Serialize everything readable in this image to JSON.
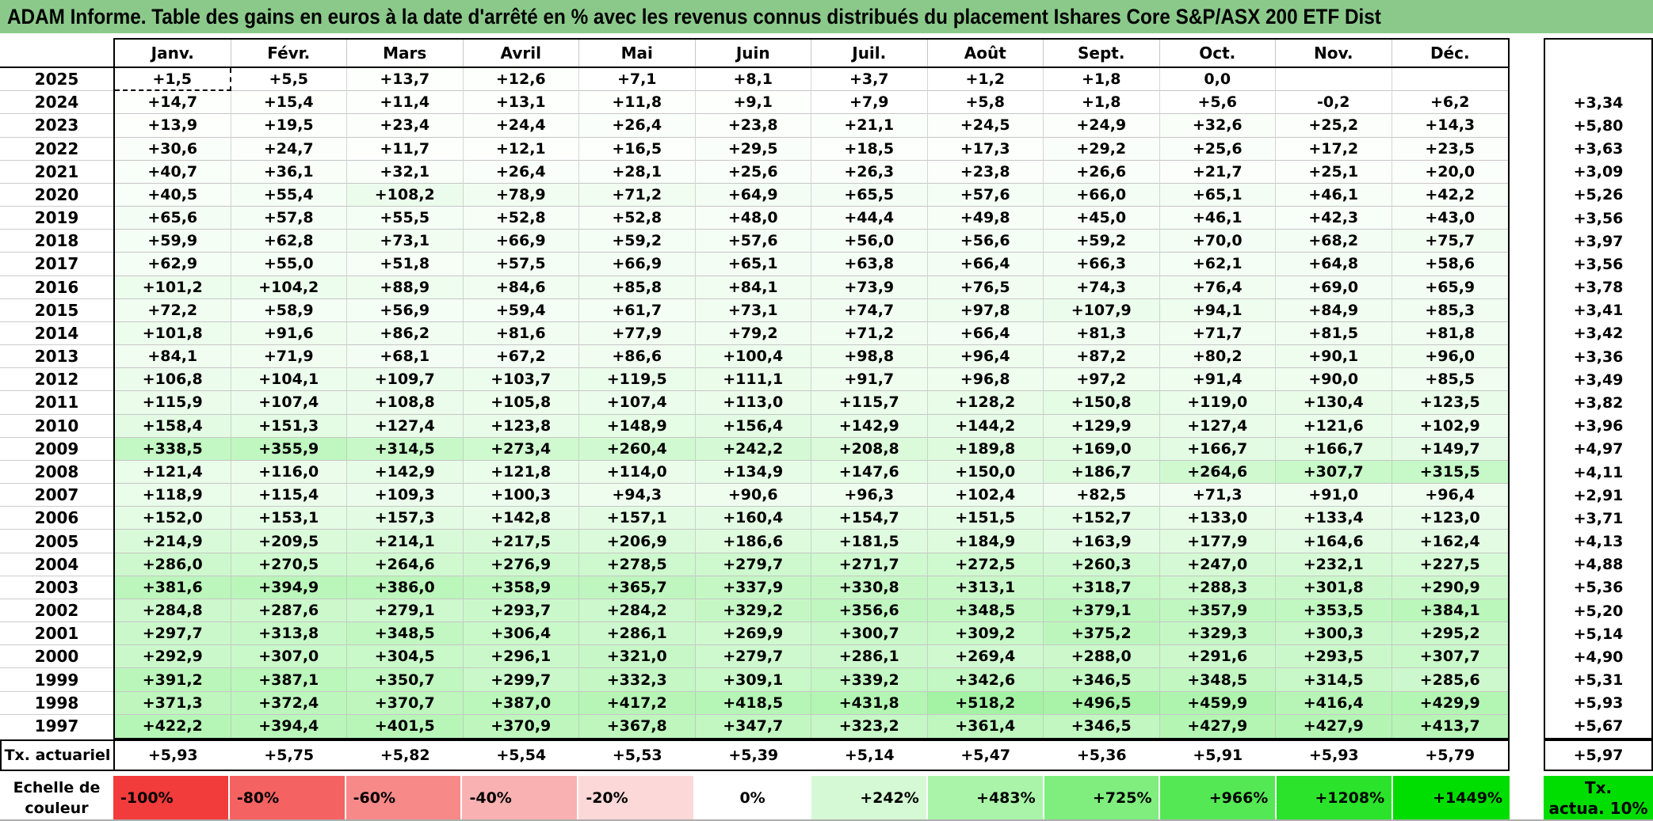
{
  "header": {
    "title": "ADAM Informe. Table des gains en euros à la date d'arrêté en % avec les revenus connus distribués du placement Ishares Core S&P/ASX 200 ETF Dist"
  },
  "months": [
    "Janv.",
    "Févr.",
    "Mars",
    "Avril",
    "Mai",
    "Juin",
    "Juil.",
    "Août",
    "Sept.",
    "Oct.",
    "Nov.",
    "Déc."
  ],
  "tx_column": {
    "header": "Tx. actuariel"
  },
  "rows": [
    {
      "year": "2025",
      "values": [
        "+1,5",
        "+5,5",
        "+13,7",
        "+12,6",
        "+7,1",
        "+8,1",
        "+3,7",
        "+1,2",
        "+1,8",
        "0,0",
        "",
        ""
      ],
      "tx": ""
    },
    {
      "year": "2024",
      "values": [
        "+14,7",
        "+15,4",
        "+11,4",
        "+13,1",
        "+11,8",
        "+9,1",
        "+7,9",
        "+5,8",
        "+1,8",
        "+5,6",
        "-0,2",
        "+6,2"
      ],
      "tx": "+3,34"
    },
    {
      "year": "2023",
      "values": [
        "+13,9",
        "+19,5",
        "+23,4",
        "+24,4",
        "+26,4",
        "+23,8",
        "+21,1",
        "+24,5",
        "+24,9",
        "+32,6",
        "+25,2",
        "+14,3"
      ],
      "tx": "+5,80"
    },
    {
      "year": "2022",
      "values": [
        "+30,6",
        "+24,7",
        "+11,7",
        "+12,1",
        "+16,5",
        "+29,5",
        "+18,5",
        "+17,3",
        "+29,2",
        "+25,6",
        "+17,2",
        "+23,5"
      ],
      "tx": "+3,63"
    },
    {
      "year": "2021",
      "values": [
        "+40,7",
        "+36,1",
        "+32,1",
        "+26,4",
        "+28,1",
        "+25,6",
        "+26,3",
        "+23,8",
        "+26,6",
        "+21,7",
        "+25,1",
        "+20,0"
      ],
      "tx": "+3,09"
    },
    {
      "year": "2020",
      "values": [
        "+40,5",
        "+55,4",
        "+108,2",
        "+78,9",
        "+71,2",
        "+64,9",
        "+65,5",
        "+57,6",
        "+66,0",
        "+65,1",
        "+46,1",
        "+42,2"
      ],
      "tx": "+5,26"
    },
    {
      "year": "2019",
      "values": [
        "+65,6",
        "+57,8",
        "+55,5",
        "+52,8",
        "+52,8",
        "+48,0",
        "+44,4",
        "+49,8",
        "+45,0",
        "+46,1",
        "+42,3",
        "+43,0"
      ],
      "tx": "+3,56"
    },
    {
      "year": "2018",
      "values": [
        "+59,9",
        "+62,8",
        "+73,1",
        "+66,9",
        "+59,2",
        "+57,6",
        "+56,0",
        "+56,6",
        "+59,2",
        "+70,0",
        "+68,2",
        "+75,7"
      ],
      "tx": "+3,97"
    },
    {
      "year": "2017",
      "values": [
        "+62,9",
        "+55,0",
        "+51,8",
        "+57,5",
        "+66,9",
        "+65,1",
        "+63,8",
        "+66,4",
        "+66,3",
        "+62,1",
        "+64,8",
        "+58,6"
      ],
      "tx": "+3,56"
    },
    {
      "year": "2016",
      "values": [
        "+101,2",
        "+104,2",
        "+88,9",
        "+84,6",
        "+85,8",
        "+84,1",
        "+73,9",
        "+76,5",
        "+74,3",
        "+76,4",
        "+69,0",
        "+65,9"
      ],
      "tx": "+3,78"
    },
    {
      "year": "2015",
      "values": [
        "+72,2",
        "+58,9",
        "+56,9",
        "+59,4",
        "+61,7",
        "+73,1",
        "+74,7",
        "+97,8",
        "+107,9",
        "+94,1",
        "+84,9",
        "+85,3"
      ],
      "tx": "+3,41"
    },
    {
      "year": "2014",
      "values": [
        "+101,8",
        "+91,6",
        "+86,2",
        "+81,6",
        "+77,9",
        "+79,2",
        "+71,2",
        "+66,4",
        "+81,3",
        "+71,7",
        "+81,5",
        "+81,8"
      ],
      "tx": "+3,42"
    },
    {
      "year": "2013",
      "values": [
        "+84,1",
        "+71,9",
        "+68,1",
        "+67,2",
        "+86,6",
        "+100,4",
        "+98,8",
        "+96,4",
        "+87,2",
        "+80,2",
        "+90,1",
        "+96,0"
      ],
      "tx": "+3,36"
    },
    {
      "year": "2012",
      "values": [
        "+106,8",
        "+104,1",
        "+109,7",
        "+103,7",
        "+119,5",
        "+111,1",
        "+91,7",
        "+96,8",
        "+97,2",
        "+91,4",
        "+90,0",
        "+85,5"
      ],
      "tx": "+3,49"
    },
    {
      "year": "2011",
      "values": [
        "+115,9",
        "+107,4",
        "+108,8",
        "+105,8",
        "+107,4",
        "+113,0",
        "+115,7",
        "+128,2",
        "+150,8",
        "+119,0",
        "+130,4",
        "+123,5"
      ],
      "tx": "+3,82"
    },
    {
      "year": "2010",
      "values": [
        "+158,4",
        "+151,3",
        "+127,4",
        "+123,8",
        "+148,9",
        "+156,4",
        "+142,9",
        "+144,2",
        "+129,9",
        "+127,4",
        "+121,6",
        "+102,9"
      ],
      "tx": "+3,96"
    },
    {
      "year": "2009",
      "values": [
        "+338,5",
        "+355,9",
        "+314,5",
        "+273,4",
        "+260,4",
        "+242,2",
        "+208,8",
        "+189,8",
        "+169,0",
        "+166,7",
        "+166,7",
        "+149,7"
      ],
      "tx": "+4,97"
    },
    {
      "year": "2008",
      "values": [
        "+121,4",
        "+116,0",
        "+142,9",
        "+121,8",
        "+114,0",
        "+134,9",
        "+147,6",
        "+150,0",
        "+186,7",
        "+264,6",
        "+307,7",
        "+315,5"
      ],
      "tx": "+4,11"
    },
    {
      "year": "2007",
      "values": [
        "+118,9",
        "+115,4",
        "+109,3",
        "+100,3",
        "+94,3",
        "+90,6",
        "+96,3",
        "+102,4",
        "+82,5",
        "+71,3",
        "+91,0",
        "+96,4"
      ],
      "tx": "+2,91"
    },
    {
      "year": "2006",
      "values": [
        "+152,0",
        "+153,1",
        "+157,3",
        "+142,8",
        "+157,1",
        "+160,4",
        "+154,7",
        "+151,5",
        "+152,7",
        "+133,0",
        "+133,4",
        "+123,0"
      ],
      "tx": "+3,71"
    },
    {
      "year": "2005",
      "values": [
        "+214,9",
        "+209,5",
        "+214,1",
        "+217,5",
        "+206,9",
        "+186,6",
        "+181,5",
        "+184,9",
        "+163,9",
        "+177,9",
        "+164,6",
        "+162,4"
      ],
      "tx": "+4,13"
    },
    {
      "year": "2004",
      "values": [
        "+286,0",
        "+270,5",
        "+264,6",
        "+276,9",
        "+278,5",
        "+279,7",
        "+271,7",
        "+272,5",
        "+260,3",
        "+247,0",
        "+232,1",
        "+227,5"
      ],
      "tx": "+4,88"
    },
    {
      "year": "2003",
      "values": [
        "+381,6",
        "+394,9",
        "+386,0",
        "+358,9",
        "+365,7",
        "+337,9",
        "+330,8",
        "+313,1",
        "+318,7",
        "+288,3",
        "+301,8",
        "+290,9"
      ],
      "tx": "+5,36"
    },
    {
      "year": "2002",
      "values": [
        "+284,8",
        "+287,6",
        "+279,1",
        "+293,7",
        "+284,2",
        "+329,2",
        "+356,6",
        "+348,5",
        "+379,1",
        "+357,9",
        "+353,5",
        "+384,1"
      ],
      "tx": "+5,20"
    },
    {
      "year": "2001",
      "values": [
        "+297,7",
        "+313,8",
        "+348,5",
        "+306,4",
        "+286,1",
        "+269,9",
        "+300,7",
        "+309,2",
        "+375,2",
        "+329,3",
        "+300,3",
        "+295,2"
      ],
      "tx": "+5,14"
    },
    {
      "year": "2000",
      "values": [
        "+292,9",
        "+307,0",
        "+304,5",
        "+296,1",
        "+321,0",
        "+279,7",
        "+286,1",
        "+269,4",
        "+288,0",
        "+291,6",
        "+293,5",
        "+307,7"
      ],
      "tx": "+4,90"
    },
    {
      "year": "1999",
      "values": [
        "+391,2",
        "+387,1",
        "+350,7",
        "+299,7",
        "+332,3",
        "+309,1",
        "+339,2",
        "+342,6",
        "+346,5",
        "+348,5",
        "+314,5",
        "+285,6"
      ],
      "tx": "+5,31"
    },
    {
      "year": "1998",
      "values": [
        "+371,3",
        "+372,4",
        "+370,7",
        "+387,0",
        "+417,2",
        "+418,5",
        "+431,8",
        "+518,2",
        "+496,5",
        "+459,9",
        "+416,4",
        "+429,9"
      ],
      "tx": "+5,93"
    },
    {
      "year": "1997",
      "values": [
        "+422,2",
        "+394,4",
        "+401,5",
        "+370,9",
        "+367,8",
        "+347,7",
        "+323,2",
        "+361,4",
        "+346,5",
        "+427,9",
        "+427,9",
        "+413,7"
      ],
      "tx": "+5,67"
    }
  ],
  "tx_row": {
    "label": "Tx. actuariel",
    "values": [
      "+5,93",
      "+5,75",
      "+5,82",
      "+5,54",
      "+5,53",
      "+5,39",
      "+5,14",
      "+5,47",
      "+5,36",
      "+5,91",
      "+5,93",
      "+5,79"
    ],
    "total": "+5,97"
  },
  "scale": {
    "label": "Echelle de couleur",
    "cells": [
      {
        "label": "-100%",
        "value": -100,
        "align": "left"
      },
      {
        "label": "-80%",
        "value": -80,
        "align": "left"
      },
      {
        "label": "-60%",
        "value": -60,
        "align": "left"
      },
      {
        "label": "-40%",
        "value": -40,
        "align": "left"
      },
      {
        "label": "-20%",
        "value": -20,
        "align": "left"
      },
      {
        "label": "0%",
        "value": 0,
        "align": "center"
      },
      {
        "label": "+242%",
        "value": 242,
        "align": "right"
      },
      {
        "label": "+483%",
        "value": 483,
        "align": "right"
      },
      {
        "label": "+725%",
        "value": 725,
        "align": "right"
      },
      {
        "label": "+966%",
        "value": 966,
        "align": "right"
      },
      {
        "label": "+1208%",
        "value": 1208,
        "align": "right"
      },
      {
        "label": "+1449%",
        "value": 1449,
        "align": "right"
      }
    ],
    "tx_box": {
      "line1": "Tx.",
      "line2": "actua. 10%",
      "value": 1449
    }
  },
  "colors": {
    "title_bar": "#8BC98B",
    "scale_max_green": "#00DD00",
    "scale_min_red": "#F23B3B",
    "scale_max_value": 1449,
    "scale_min_value": -100
  },
  "selection": {
    "year": "2025",
    "col_index": 0
  }
}
